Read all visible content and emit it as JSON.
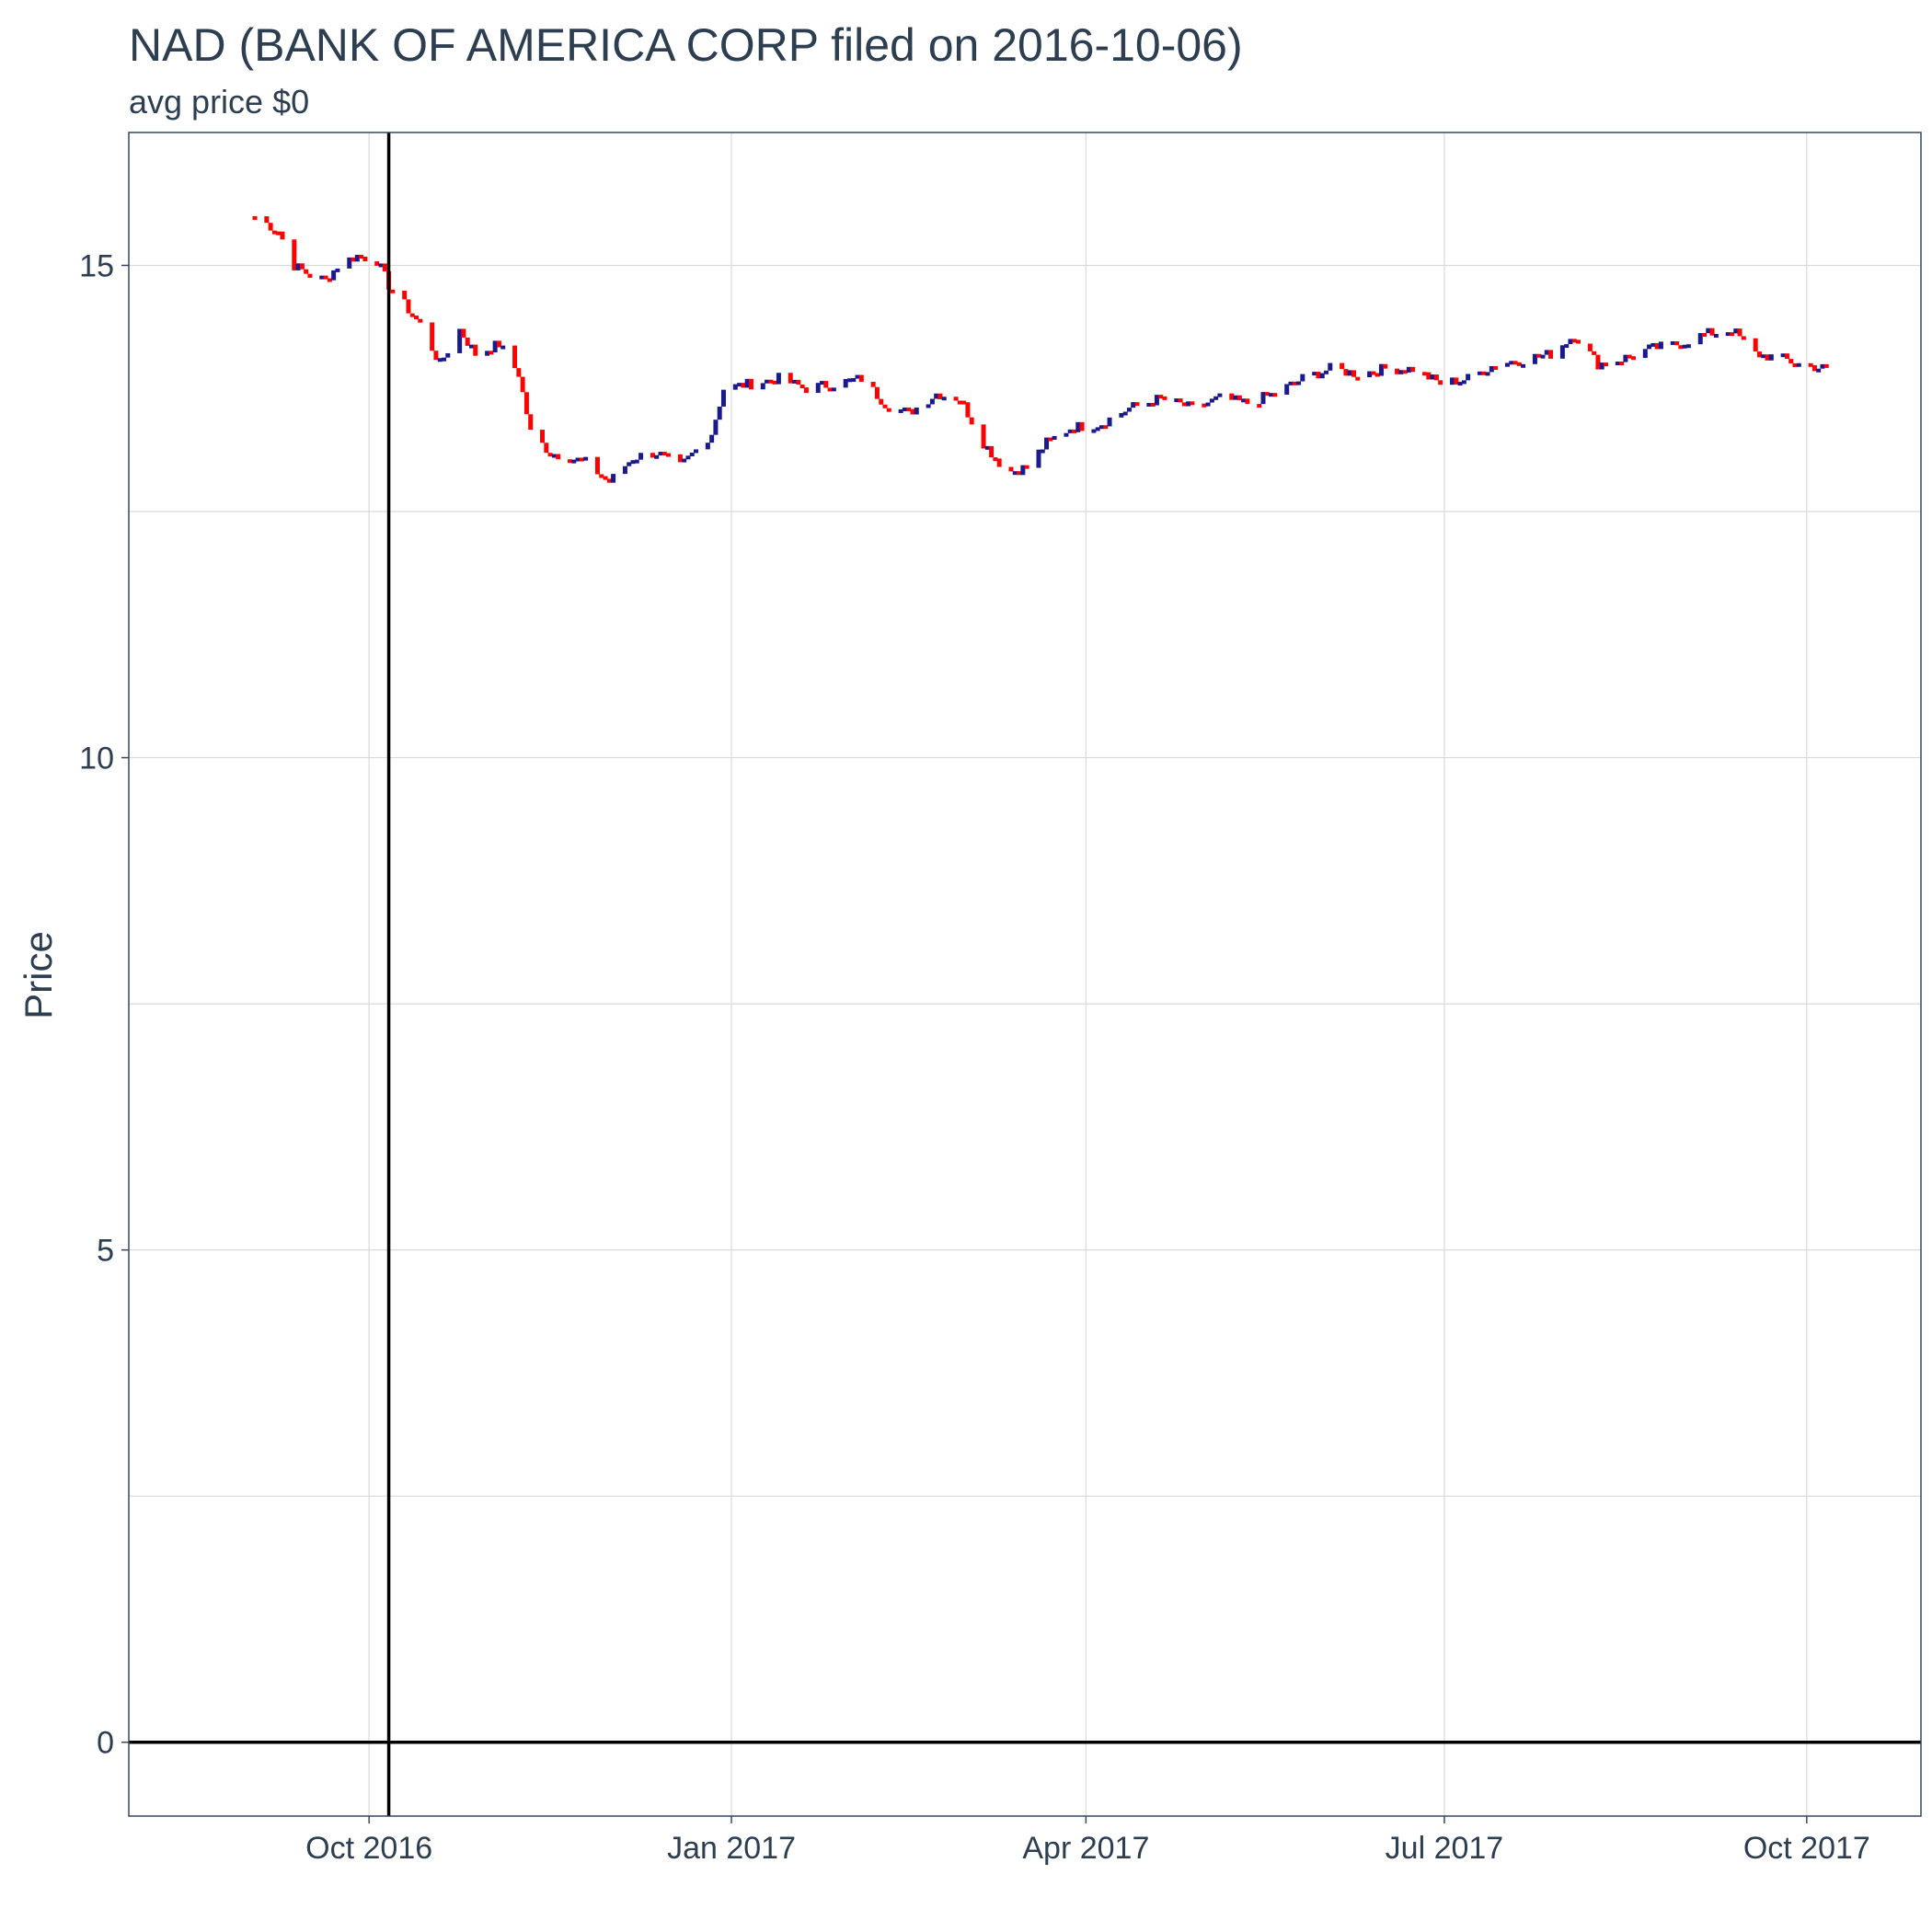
{
  "chart_data": {
    "type": "candlestick",
    "title": "NAD (BANK OF AMERICA CORP filed on 2016-10-06)",
    "subtitle": "avg price $0",
    "xlabel": "",
    "ylabel": "Price",
    "xlim": [
      "2016-08-01",
      "2017-10-30"
    ],
    "ylim": [
      -0.75,
      16.35
    ],
    "yticks": [
      0,
      5,
      10,
      15
    ],
    "ytick_labels": [
      "0",
      "5",
      "10",
      "15"
    ],
    "xticks": [
      "2016-10-01",
      "2017-01-01",
      "2017-04-01",
      "2017-07-01",
      "2017-10-01"
    ],
    "xtick_labels": [
      "Oct 2016",
      "Jan 2017",
      "Apr 2017",
      "Jul 2017",
      "Oct 2017"
    ],
    "grid": true,
    "filing_date": "2016-10-06",
    "hline_value": 0,
    "colors": {
      "up": "#1a1a8c",
      "down": "#ff0000",
      "grid": "#d9d9d9",
      "panel_border": "#34495e",
      "reference_line": "#000000"
    },
    "anchors": [
      [
        "2016-09-02",
        15.5
      ],
      [
        "2016-09-08",
        15.35
      ],
      [
        "2016-09-12",
        15.0
      ],
      [
        "2016-09-16",
        14.9
      ],
      [
        "2016-09-20",
        14.85
      ],
      [
        "2016-09-23",
        15.0
      ],
      [
        "2016-09-28",
        15.1
      ],
      [
        "2016-10-03",
        15.05
      ],
      [
        "2016-10-06",
        14.8
      ],
      [
        "2016-10-10",
        14.6
      ],
      [
        "2016-10-14",
        14.4
      ],
      [
        "2016-10-19",
        14.0
      ],
      [
        "2016-10-24",
        14.35
      ],
      [
        "2016-10-28",
        14.1
      ],
      [
        "2016-11-03",
        14.2
      ],
      [
        "2016-11-08",
        13.9
      ],
      [
        "2016-11-11",
        13.3
      ],
      [
        "2016-11-16",
        13.1
      ],
      [
        "2016-11-21",
        13.05
      ],
      [
        "2016-11-25",
        13.0
      ],
      [
        "2016-12-01",
        12.8
      ],
      [
        "2016-12-07",
        13.05
      ],
      [
        "2016-12-13",
        13.1
      ],
      [
        "2016-12-19",
        12.95
      ],
      [
        "2016-12-27",
        13.3
      ],
      [
        "2016-12-30",
        13.75
      ],
      [
        "2017-01-06",
        13.8
      ],
      [
        "2017-01-13",
        13.85
      ],
      [
        "2017-01-20",
        13.75
      ],
      [
        "2017-01-27",
        13.8
      ],
      [
        "2017-02-03",
        13.85
      ],
      [
        "2017-02-09",
        13.6
      ],
      [
        "2017-02-15",
        13.5
      ],
      [
        "2017-02-22",
        13.7
      ],
      [
        "2017-02-28",
        13.65
      ],
      [
        "2017-03-06",
        13.2
      ],
      [
        "2017-03-12",
        12.9
      ],
      [
        "2017-03-17",
        12.95
      ],
      [
        "2017-03-22",
        13.2
      ],
      [
        "2017-03-28",
        13.35
      ],
      [
        "2017-04-05",
        13.4
      ],
      [
        "2017-04-12",
        13.55
      ],
      [
        "2017-04-20",
        13.65
      ],
      [
        "2017-04-28",
        13.55
      ],
      [
        "2017-05-05",
        13.65
      ],
      [
        "2017-05-12",
        13.6
      ],
      [
        "2017-05-19",
        13.7
      ],
      [
        "2017-05-26",
        13.85
      ],
      [
        "2017-06-02",
        13.95
      ],
      [
        "2017-06-09",
        13.9
      ],
      [
        "2017-06-16",
        13.95
      ],
      [
        "2017-06-23",
        13.95
      ],
      [
        "2017-06-30",
        13.8
      ],
      [
        "2017-07-07",
        13.85
      ],
      [
        "2017-07-14",
        14.0
      ],
      [
        "2017-07-21",
        14.05
      ],
      [
        "2017-07-28",
        14.1
      ],
      [
        "2017-08-03",
        14.3
      ],
      [
        "2017-08-09",
        14.0
      ],
      [
        "2017-08-15",
        14.05
      ],
      [
        "2017-08-22",
        14.15
      ],
      [
        "2017-08-29",
        14.2
      ],
      [
        "2017-09-05",
        14.3
      ],
      [
        "2017-09-12",
        14.35
      ],
      [
        "2017-09-18",
        14.1
      ],
      [
        "2017-09-25",
        14.05
      ],
      [
        "2017-09-29",
        14.0
      ],
      [
        "2017-10-06",
        13.95
      ]
    ]
  }
}
